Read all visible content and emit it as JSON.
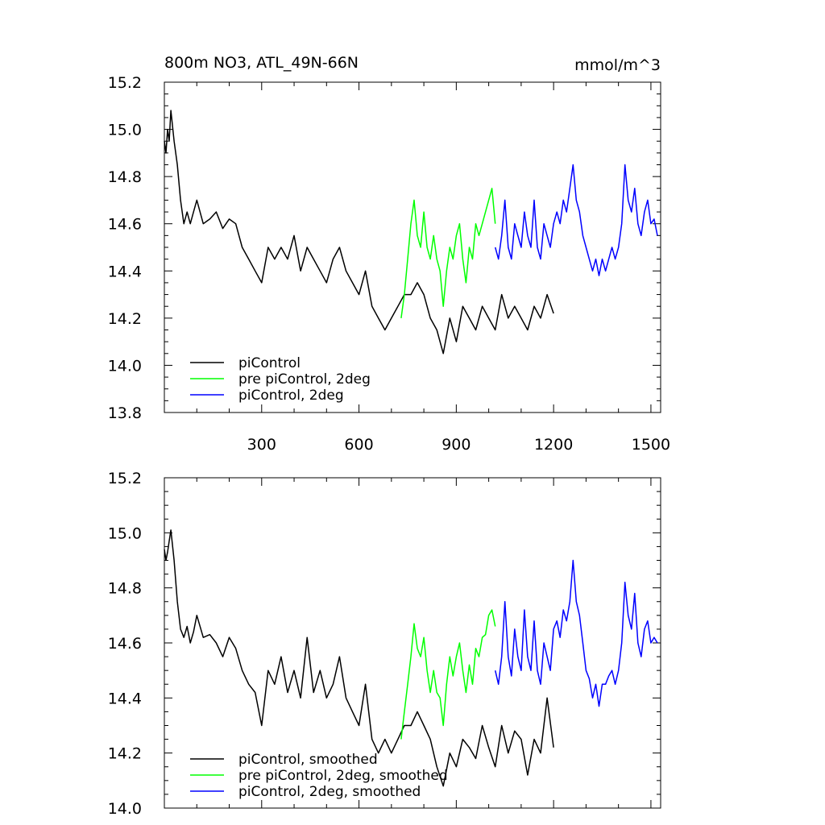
{
  "chart_data": [
    {
      "type": "line",
      "title": "800m NO3, ATL_49N-66N",
      "units": "mmol/m^3",
      "xlim": [
        0,
        1530
      ],
      "ylim": [
        13.8,
        15.2
      ],
      "x_ticks": [
        300,
        600,
        900,
        1200,
        1500
      ],
      "x_tick_labels": [
        "300",
        "600",
        "900",
        "1200",
        "1500"
      ],
      "y_ticks": [
        13.8,
        14.0,
        14.2,
        14.4,
        14.6,
        14.8,
        15.0,
        15.2
      ],
      "y_tick_labels": [
        "13.8",
        "14.0",
        "14.2",
        "14.4",
        "14.6",
        "14.8",
        "15.0",
        "15.2"
      ],
      "grid": false,
      "legend_position": "bottom-left",
      "series": [
        {
          "name": "piControl",
          "color": "#000000",
          "x": [
            0,
            5,
            10,
            15,
            20,
            30,
            40,
            50,
            60,
            70,
            80,
            90,
            100,
            120,
            140,
            160,
            180,
            200,
            220,
            240,
            260,
            280,
            300,
            320,
            340,
            360,
            380,
            400,
            420,
            440,
            460,
            480,
            500,
            520,
            540,
            560,
            580,
            600,
            620,
            640,
            660,
            680,
            700,
            720,
            740,
            760,
            780,
            800,
            820,
            840,
            860,
            880,
            900,
            920,
            940,
            960,
            980,
            1000,
            1020,
            1040,
            1060,
            1080,
            1100,
            1120,
            1140,
            1160,
            1180,
            1200
          ],
          "y": [
            14.95,
            14.9,
            15.0,
            14.95,
            15.08,
            14.95,
            14.85,
            14.7,
            14.6,
            14.65,
            14.6,
            14.65,
            14.7,
            14.6,
            14.62,
            14.65,
            14.58,
            14.62,
            14.6,
            14.5,
            14.45,
            14.4,
            14.35,
            14.5,
            14.45,
            14.5,
            14.45,
            14.55,
            14.4,
            14.5,
            14.45,
            14.4,
            14.35,
            14.45,
            14.5,
            14.4,
            14.35,
            14.3,
            14.4,
            14.25,
            14.2,
            14.15,
            14.2,
            14.25,
            14.3,
            14.3,
            14.35,
            14.3,
            14.2,
            14.15,
            14.05,
            14.2,
            14.1,
            14.25,
            14.2,
            14.15,
            14.25,
            14.2,
            14.15,
            14.3,
            14.2,
            14.25,
            14.2,
            14.15,
            14.25,
            14.2,
            14.3,
            14.22
          ]
        },
        {
          "name": "pre piControl, 2deg",
          "color": "#00ff00",
          "x": [
            730,
            740,
            750,
            760,
            770,
            780,
            790,
            800,
            810,
            820,
            830,
            840,
            850,
            860,
            870,
            880,
            890,
            900,
            910,
            920,
            930,
            940,
            950,
            960,
            970,
            980,
            990,
            1000,
            1010,
            1020
          ],
          "y": [
            14.2,
            14.3,
            14.45,
            14.6,
            14.7,
            14.55,
            14.5,
            14.65,
            14.5,
            14.45,
            14.55,
            14.45,
            14.4,
            14.25,
            14.4,
            14.5,
            14.45,
            14.55,
            14.6,
            14.45,
            14.35,
            14.5,
            14.45,
            14.6,
            14.55,
            14.6,
            14.65,
            14.7,
            14.75,
            14.6
          ]
        },
        {
          "name": "piControl, 2deg",
          "color": "#0000ff",
          "x": [
            1020,
            1030,
            1040,
            1050,
            1060,
            1070,
            1080,
            1090,
            1100,
            1110,
            1120,
            1130,
            1140,
            1150,
            1160,
            1170,
            1180,
            1190,
            1200,
            1210,
            1220,
            1230,
            1240,
            1250,
            1260,
            1270,
            1280,
            1290,
            1300,
            1310,
            1320,
            1330,
            1340,
            1350,
            1360,
            1370,
            1380,
            1390,
            1400,
            1410,
            1420,
            1430,
            1440,
            1450,
            1460,
            1470,
            1480,
            1490,
            1500,
            1510,
            1520
          ],
          "y": [
            14.5,
            14.45,
            14.55,
            14.7,
            14.5,
            14.45,
            14.6,
            14.55,
            14.5,
            14.65,
            14.55,
            14.5,
            14.7,
            14.5,
            14.45,
            14.6,
            14.55,
            14.5,
            14.6,
            14.65,
            14.6,
            14.7,
            14.65,
            14.75,
            14.85,
            14.7,
            14.65,
            14.55,
            14.5,
            14.45,
            14.4,
            14.45,
            14.38,
            14.45,
            14.4,
            14.45,
            14.5,
            14.45,
            14.5,
            14.6,
            14.85,
            14.7,
            14.65,
            14.75,
            14.6,
            14.55,
            14.65,
            14.7,
            14.6,
            14.62,
            14.55
          ]
        }
      ]
    },
    {
      "type": "line",
      "title": "",
      "xlim": [
        0,
        1530
      ],
      "ylim": [
        14.0,
        15.2
      ],
      "x_ticks": [
        300,
        600,
        900,
        1200,
        1500
      ],
      "y_ticks": [
        14.0,
        14.2,
        14.4,
        14.6,
        14.8,
        15.0,
        15.2
      ],
      "y_tick_labels": [
        "14.0",
        "14.2",
        "14.4",
        "14.6",
        "14.8",
        "15.0",
        "15.2"
      ],
      "grid": false,
      "legend_position": "bottom-left",
      "series": [
        {
          "name": "piControl, smoothed",
          "color": "#000000",
          "x": [
            0,
            5,
            10,
            15,
            20,
            30,
            40,
            50,
            60,
            70,
            80,
            90,
            100,
            120,
            140,
            160,
            180,
            200,
            220,
            240,
            260,
            280,
            300,
            320,
            340,
            360,
            380,
            400,
            420,
            440,
            460,
            480,
            500,
            520,
            540,
            560,
            580,
            600,
            620,
            640,
            660,
            680,
            700,
            720,
            740,
            760,
            780,
            800,
            820,
            840,
            860,
            880,
            900,
            920,
            940,
            960,
            980,
            1000,
            1020,
            1040,
            1060,
            1080,
            1100,
            1120,
            1140,
            1160,
            1180,
            1200
          ],
          "y": [
            14.94,
            14.9,
            14.93,
            14.97,
            15.01,
            14.9,
            14.75,
            14.65,
            14.62,
            14.66,
            14.6,
            14.64,
            14.7,
            14.62,
            14.63,
            14.6,
            14.55,
            14.62,
            14.58,
            14.5,
            14.45,
            14.42,
            14.3,
            14.5,
            14.45,
            14.55,
            14.42,
            14.5,
            14.4,
            14.62,
            14.42,
            14.5,
            14.4,
            14.45,
            14.55,
            14.4,
            14.35,
            14.3,
            14.45,
            14.25,
            14.2,
            14.25,
            14.2,
            14.25,
            14.3,
            14.3,
            14.35,
            14.3,
            14.25,
            14.15,
            14.08,
            14.2,
            14.15,
            14.25,
            14.22,
            14.18,
            14.3,
            14.22,
            14.15,
            14.3,
            14.2,
            14.28,
            14.25,
            14.12,
            14.25,
            14.2,
            14.4,
            14.22
          ]
        },
        {
          "name": "pre piControl, 2deg, smoothed",
          "color": "#00ff00",
          "x": [
            730,
            740,
            750,
            760,
            770,
            780,
            790,
            800,
            810,
            820,
            830,
            840,
            850,
            860,
            870,
            880,
            890,
            900,
            910,
            920,
            930,
            940,
            950,
            960,
            970,
            980,
            990,
            1000,
            1010,
            1020
          ],
          "y": [
            14.25,
            14.35,
            14.45,
            14.55,
            14.67,
            14.58,
            14.55,
            14.62,
            14.5,
            14.42,
            14.5,
            14.42,
            14.4,
            14.3,
            14.45,
            14.55,
            14.48,
            14.55,
            14.6,
            14.5,
            14.42,
            14.52,
            14.45,
            14.58,
            14.55,
            14.62,
            14.63,
            14.7,
            14.72,
            14.66
          ]
        },
        {
          "name": "piControl, 2deg, smoothed",
          "color": "#0000ff",
          "x": [
            1020,
            1030,
            1040,
            1050,
            1060,
            1070,
            1080,
            1090,
            1100,
            1110,
            1120,
            1130,
            1140,
            1150,
            1160,
            1170,
            1180,
            1190,
            1200,
            1210,
            1220,
            1230,
            1240,
            1250,
            1260,
            1270,
            1280,
            1290,
            1300,
            1310,
            1320,
            1330,
            1340,
            1350,
            1360,
            1370,
            1380,
            1390,
            1400,
            1410,
            1420,
            1430,
            1440,
            1450,
            1460,
            1470,
            1480,
            1490,
            1500,
            1510,
            1520
          ],
          "y": [
            14.5,
            14.45,
            14.55,
            14.75,
            14.55,
            14.48,
            14.65,
            14.55,
            14.5,
            14.72,
            14.55,
            14.5,
            14.68,
            14.5,
            14.45,
            14.6,
            14.55,
            14.5,
            14.65,
            14.68,
            14.62,
            14.72,
            14.68,
            14.75,
            14.9,
            14.75,
            14.7,
            14.6,
            14.5,
            14.47,
            14.4,
            14.45,
            14.37,
            14.45,
            14.45,
            14.48,
            14.5,
            14.45,
            14.5,
            14.6,
            14.82,
            14.7,
            14.65,
            14.78,
            14.6,
            14.55,
            14.65,
            14.68,
            14.6,
            14.62,
            14.6
          ]
        }
      ]
    }
  ]
}
